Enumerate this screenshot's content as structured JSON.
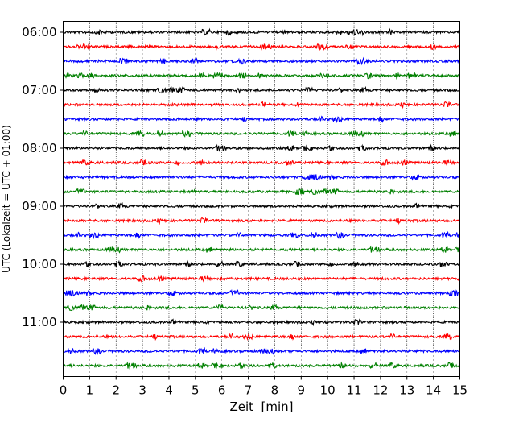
{
  "chart_data": {
    "type": "line",
    "title": "",
    "xlabel": "Zeit  [min]",
    "ylabel": "UTC (Lokalzeit = UTC + 01:00)",
    "xlim": [
      0,
      15
    ],
    "xticks": [
      "0",
      "1",
      "2",
      "3",
      "4",
      "5",
      "6",
      "7",
      "8",
      "9",
      "10",
      "11",
      "12",
      "13",
      "14",
      "15"
    ],
    "yticks": [
      "06:00",
      "07:00",
      "08:00",
      "09:00",
      "10:00",
      "11:00"
    ],
    "row_interval_min": 15,
    "start_time": "06:00",
    "row_count": 24,
    "row_colors": [
      "#000000",
      "#ff0000",
      "#0000ff",
      "#008000"
    ],
    "grid": "vertical dotted",
    "series_description_rows": [
      "06:00",
      "06:15",
      "06:30",
      "06:45",
      "07:00",
      "07:15",
      "07:30",
      "07:45",
      "08:00",
      "08:15",
      "08:30",
      "08:45",
      "09:00",
      "09:15",
      "09:30",
      "09:45",
      "10:00",
      "10:15",
      "10:30",
      "10:45",
      "11:00",
      "11:15",
      "11:30",
      "11:45"
    ]
  }
}
